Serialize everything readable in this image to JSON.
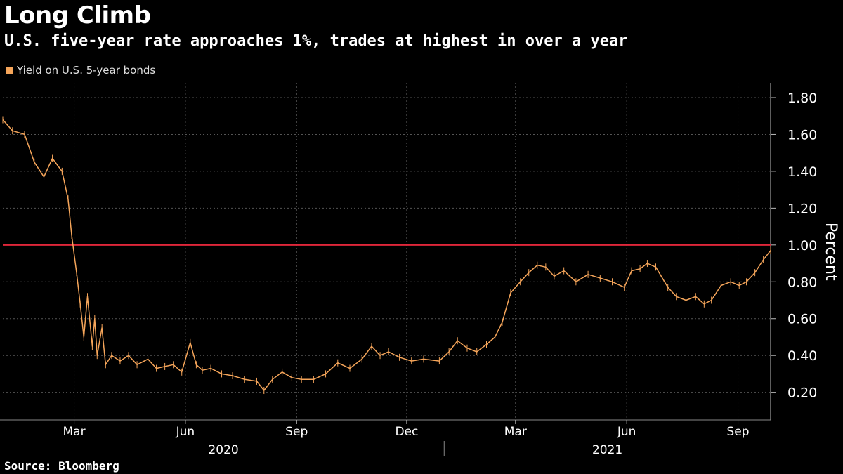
{
  "header": {
    "title": "Long Climb",
    "subtitle": "U.S. five-year rate approaches 1%, trades at highest in over a year"
  },
  "footer": {
    "source": "Source: Bloomberg"
  },
  "colors": {
    "line": "#f5a55a",
    "reference": "#e0263a",
    "background": "#000000",
    "grid": "#555555"
  },
  "chart_data": {
    "type": "line",
    "title": "Long Climb",
    "subtitle": "U.S. five-year rate approaches 1%, trades at highest in over a year",
    "ylabel": "Percent",
    "ylim": [
      0.05,
      1.88
    ],
    "yticks": [
      0.2,
      0.4,
      0.6,
      0.8,
      1.0,
      1.2,
      1.4,
      1.6,
      1.8
    ],
    "ytick_labels": [
      "0.20",
      "0.40",
      "0.60",
      "0.80",
      "1.00",
      "1.20",
      "1.40",
      "1.60",
      "1.80"
    ],
    "xlim": [
      "2020-01-02",
      "2021-09-28"
    ],
    "xticks": [
      {
        "date": "2020-03-01",
        "label": "Mar"
      },
      {
        "date": "2020-06-01",
        "label": "Jun"
      },
      {
        "date": "2020-09-01",
        "label": "Sep"
      },
      {
        "date": "2020-12-01",
        "label": "Dec"
      },
      {
        "date": "2021-03-01",
        "label": "Mar"
      },
      {
        "date": "2021-06-01",
        "label": "Jun"
      },
      {
        "date": "2021-09-01",
        "label": "Sep"
      }
    ],
    "year_labels": [
      {
        "label": "2020",
        "from": "2020-01-02",
        "to": "2021-01-01"
      },
      {
        "label": "2021",
        "from": "2021-01-01",
        "to": "2021-09-28"
      }
    ],
    "grid": true,
    "legend_position": "top-left",
    "reference_line": {
      "y": 1.0
    },
    "series": [
      {
        "name": "Yield on U.S. 5-year bonds",
        "x": [
          "2020-01-02",
          "2020-01-10",
          "2020-01-20",
          "2020-01-28",
          "2020-02-05",
          "2020-02-12",
          "2020-02-20",
          "2020-02-25",
          "2020-02-28",
          "2020-03-03",
          "2020-03-06",
          "2020-03-09",
          "2020-03-12",
          "2020-03-16",
          "2020-03-18",
          "2020-03-20",
          "2020-03-24",
          "2020-03-27",
          "2020-04-01",
          "2020-04-08",
          "2020-04-15",
          "2020-04-22",
          "2020-05-01",
          "2020-05-08",
          "2020-05-15",
          "2020-05-22",
          "2020-05-29",
          "2020-06-05",
          "2020-06-10",
          "2020-06-15",
          "2020-06-22",
          "2020-07-01",
          "2020-07-10",
          "2020-07-20",
          "2020-07-30",
          "2020-08-05",
          "2020-08-12",
          "2020-08-20",
          "2020-08-28",
          "2020-09-05",
          "2020-09-15",
          "2020-09-25",
          "2020-10-05",
          "2020-10-15",
          "2020-10-25",
          "2020-11-02",
          "2020-11-09",
          "2020-11-16",
          "2020-11-25",
          "2020-12-05",
          "2020-12-15",
          "2020-12-28",
          "2021-01-05",
          "2021-01-12",
          "2021-01-20",
          "2021-01-28",
          "2021-02-05",
          "2021-02-12",
          "2021-02-18",
          "2021-02-25",
          "2021-03-05",
          "2021-03-12",
          "2021-03-19",
          "2021-03-26",
          "2021-04-02",
          "2021-04-10",
          "2021-04-20",
          "2021-04-30",
          "2021-05-10",
          "2021-05-20",
          "2021-05-30",
          "2021-06-05",
          "2021-06-12",
          "2021-06-18",
          "2021-06-25",
          "2021-07-05",
          "2021-07-12",
          "2021-07-20",
          "2021-07-28",
          "2021-08-04",
          "2021-08-10",
          "2021-08-18",
          "2021-08-26",
          "2021-09-02",
          "2021-09-08",
          "2021-09-15",
          "2021-09-22",
          "2021-09-28"
        ],
        "y": [
          1.68,
          1.62,
          1.6,
          1.45,
          1.37,
          1.47,
          1.4,
          1.25,
          1.05,
          0.85,
          0.68,
          0.5,
          0.72,
          0.45,
          0.6,
          0.4,
          0.55,
          0.35,
          0.4,
          0.37,
          0.4,
          0.35,
          0.38,
          0.33,
          0.34,
          0.35,
          0.31,
          0.47,
          0.35,
          0.32,
          0.33,
          0.3,
          0.29,
          0.27,
          0.26,
          0.21,
          0.27,
          0.31,
          0.28,
          0.27,
          0.27,
          0.3,
          0.36,
          0.33,
          0.38,
          0.45,
          0.4,
          0.42,
          0.39,
          0.37,
          0.38,
          0.37,
          0.42,
          0.48,
          0.44,
          0.42,
          0.46,
          0.5,
          0.58,
          0.74,
          0.8,
          0.85,
          0.89,
          0.88,
          0.83,
          0.86,
          0.8,
          0.84,
          0.82,
          0.8,
          0.77,
          0.86,
          0.87,
          0.9,
          0.88,
          0.77,
          0.72,
          0.7,
          0.72,
          0.68,
          0.7,
          0.78,
          0.8,
          0.78,
          0.8,
          0.85,
          0.92,
          0.97
        ]
      }
    ]
  }
}
